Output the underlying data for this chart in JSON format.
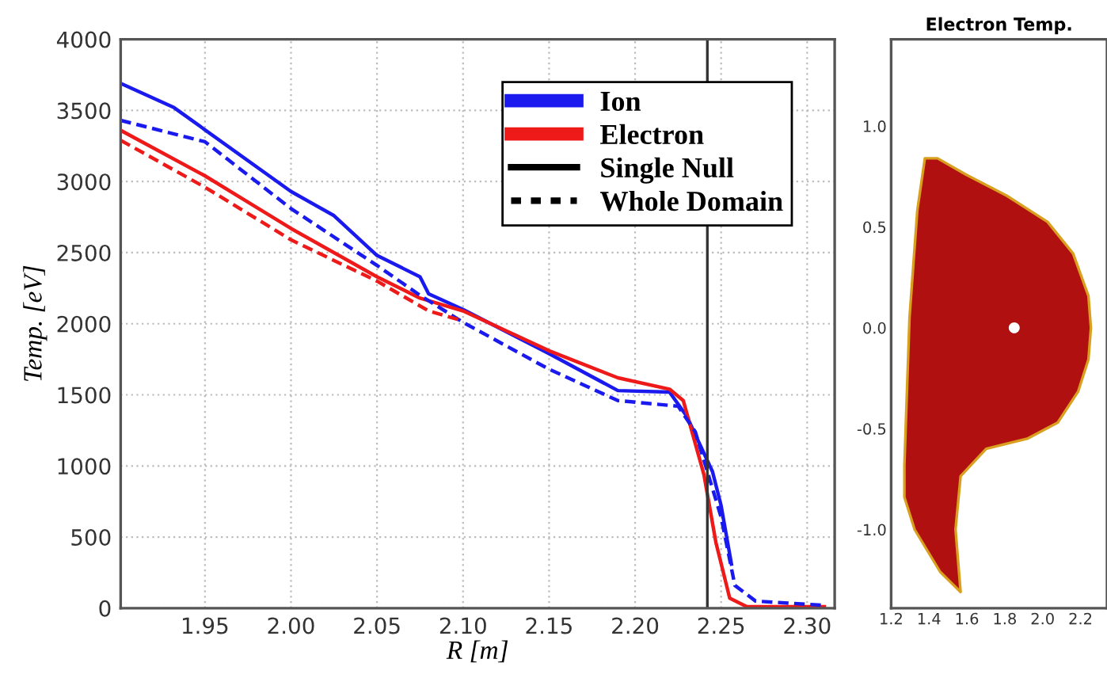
{
  "chart_data": [
    {
      "type": "line",
      "xlabel": "R [m]",
      "ylabel": "Temp. [eV]",
      "xlim": [
        1.901,
        2.316
      ],
      "ylim": [
        0,
        4000
      ],
      "xticks": [
        1.95,
        {
          "value": 2.0,
          "label": "2.00"
        },
        2.05,
        {
          "value": 2.1,
          "label": "2.10"
        },
        2.15,
        {
          "value": 2.2,
          "label": "2.20"
        },
        2.25,
        {
          "value": 2.3,
          "label": "2.30"
        }
      ],
      "yticks": [
        0,
        500,
        1000,
        1500,
        2000,
        2500,
        3000,
        3500,
        4000
      ],
      "grid": true,
      "legend": "top right",
      "ref_lines": [
        {
          "axis": "x",
          "value": 2.242,
          "color": "#333333",
          "line_style": "solid"
        }
      ],
      "series": [
        {
          "name": "Ion",
          "color": "#1a1aee",
          "line_style": "solid",
          "x": [
            1.901,
            1.932,
            2.0,
            2.025,
            2.05,
            2.075,
            2.08,
            2.1,
            2.15,
            2.19,
            2.22,
            2.23,
            2.245,
            2.25,
            2.256
          ],
          "values": [
            3690,
            3520,
            2930,
            2760,
            2480,
            2330,
            2210,
            2100,
            1790,
            1530,
            1520,
            1350,
            960,
            720,
            310
          ]
        },
        {
          "name": "Electron",
          "color": "#ee1a1a",
          "line_style": "solid",
          "x": [
            1.901,
            1.95,
            2.0,
            2.025,
            2.05,
            2.075,
            2.1,
            2.15,
            2.19,
            2.22,
            2.228,
            2.24,
            2.247,
            2.255,
            2.265,
            2.31
          ],
          "values": [
            3360,
            3040,
            2670,
            2500,
            2330,
            2180,
            2090,
            1810,
            1620,
            1540,
            1460,
            940,
            460,
            70,
            10,
            10
          ]
        },
        {
          "color": "#1a1aee",
          "line_style": "dashed",
          "x": [
            1.901,
            1.95,
            2.0,
            2.05,
            2.075,
            2.1,
            2.15,
            2.19,
            2.225,
            2.235,
            2.25,
            2.258,
            2.27,
            2.31
          ],
          "values": [
            3430,
            3280,
            2810,
            2410,
            2200,
            2010,
            1680,
            1460,
            1420,
            1240,
            640,
            160,
            50,
            20
          ]
        },
        {
          "color": "#ee1a1a",
          "line_style": "dashed",
          "x": [
            1.901,
            1.95,
            2.0,
            2.05,
            2.08,
            2.1
          ],
          "values": [
            3290,
            2960,
            2590,
            2300,
            2090,
            2020
          ]
        },
        {
          "name": "Single Null",
          "color": "#000000",
          "line_style": "solid"
        },
        {
          "name": "Whole Domain",
          "color": "#000000",
          "line_style": "dotted"
        }
      ]
    },
    {
      "type": "area",
      "title": "Electron Temp.",
      "xlim": [
        1.2,
        2.34
      ],
      "ylim": [
        -1.39,
        1.43
      ],
      "xticks": [
        {
          "value": 1.2,
          "label": "1.2"
        },
        {
          "value": 1.4,
          "label": "1.4"
        },
        {
          "value": 1.6,
          "label": "1.6"
        },
        {
          "value": 1.8,
          "label": "1.8"
        },
        {
          "value": 2.0,
          "label": "2.0"
        },
        {
          "value": 2.2,
          "label": "2.2"
        }
      ],
      "yticks": [
        {
          "value": -1.0,
          "label": "-1.0"
        },
        {
          "value": -0.5,
          "label": "-0.5"
        },
        {
          "value": 0.0,
          "label": "0.0"
        },
        {
          "value": 0.5,
          "label": "0.5"
        },
        {
          "value": 1.0,
          "label": "1.0"
        }
      ],
      "series": [
        {
          "type": "area",
          "color": "#b01010",
          "x": [
            1.378,
            1.445,
            1.594,
            1.81,
            2.026,
            2.161,
            2.242,
            2.255,
            2.242,
            2.188,
            2.08,
            1.918,
            1.702,
            1.567,
            1.54,
            1.567,
            1.459,
            1.324,
            1.27,
            1.27,
            1.297,
            1.338,
            1.378
          ],
          "values": [
            0.84,
            0.84,
            0.76,
            0.655,
            0.525,
            0.368,
            0.158,
            0.0,
            -0.157,
            -0.315,
            -0.47,
            -0.55,
            -0.6,
            -0.735,
            -1.0,
            -1.31,
            -1.21,
            -1.0,
            -0.84,
            -0.68,
            0.05,
            0.58,
            0.84
          ]
        },
        {
          "type": "scatter",
          "color": "#ffffff",
          "x": [
            1.85
          ],
          "values": [
            0.0
          ]
        }
      ]
    }
  ]
}
